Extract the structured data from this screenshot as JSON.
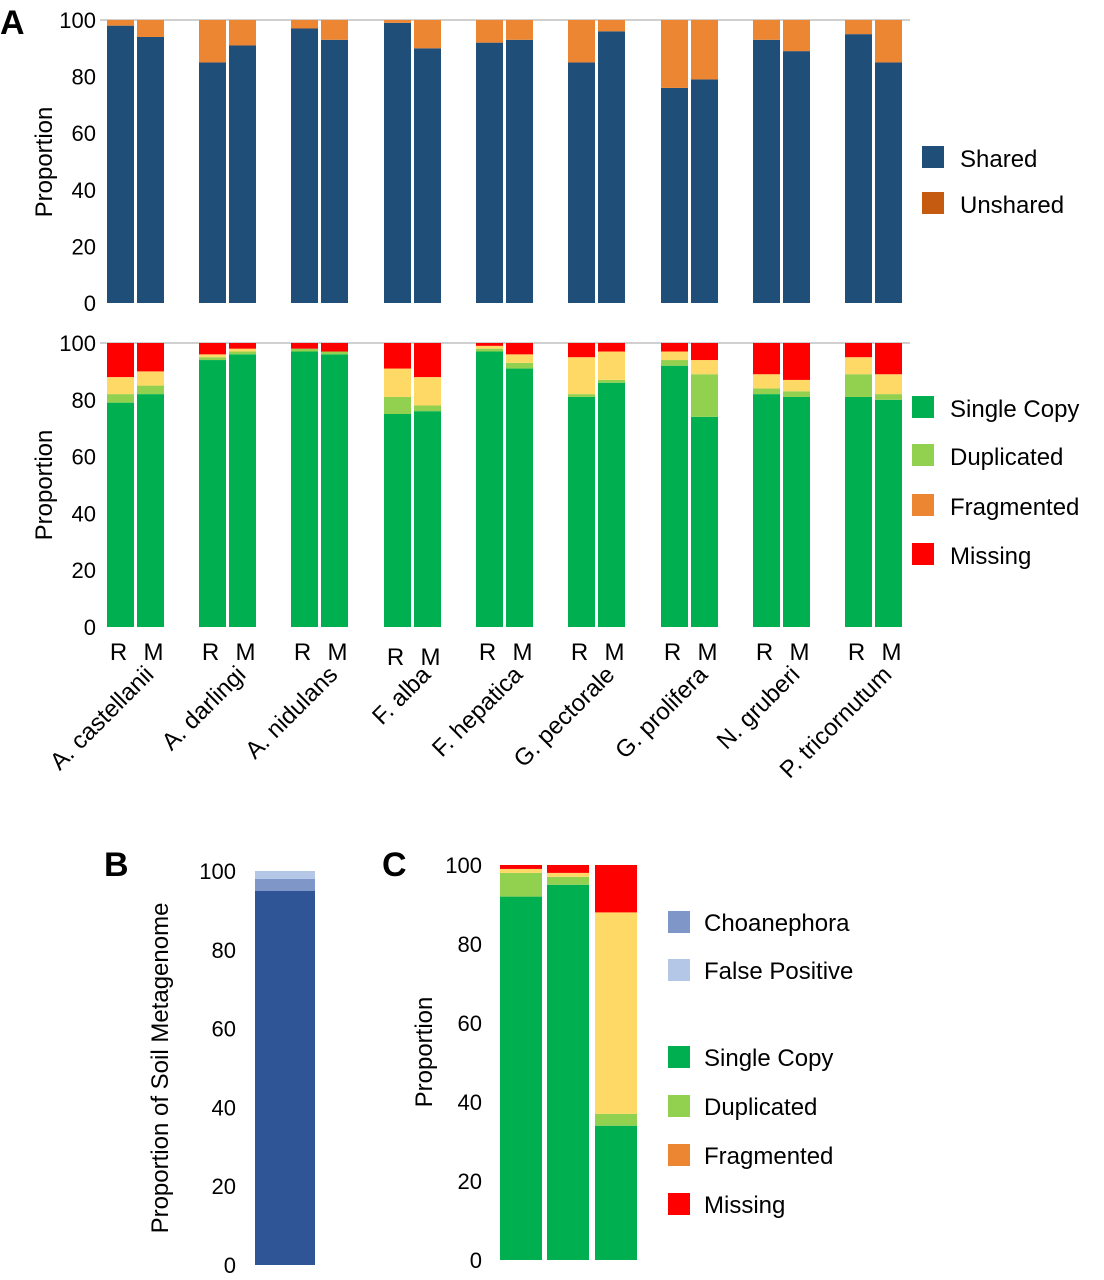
{
  "colors": {
    "shared": "#1f4e79",
    "unshared": "#ed8632",
    "unshared_legend": "#c55a11",
    "single": "#00b050",
    "duplicated": "#92d050",
    "fragmented_a": "#ffd966",
    "fragmented_legend": "#ed8632",
    "missing": "#ff0000",
    "soil": "#2f5597",
    "choanephora": "#7f96c8",
    "false_positive": "#b4c7e7",
    "grid": "#d0d0d0"
  },
  "panels": {
    "a": "A",
    "b": "B",
    "c": "C"
  },
  "chart_data": [
    {
      "id": "A-top",
      "type": "bar",
      "stacked": true,
      "ylabel": "Proportion",
      "ylim": [
        0,
        100
      ],
      "yticks": [
        "0",
        "20",
        "40",
        "60",
        "80",
        "100"
      ],
      "categories": [
        "A. castellanii",
        "A. darlingi",
        "A. nidulans",
        "F. alba",
        "F. hepatica",
        "G. pectorale",
        "G. prolifera",
        "N. gruberi",
        "P. tricornutum"
      ],
      "subcategories": [
        "R",
        "M"
      ],
      "legend": [
        "Shared",
        "Unshared"
      ],
      "series": [
        {
          "name": "Shared",
          "values": [
            [
              98,
              94
            ],
            [
              85,
              91
            ],
            [
              97,
              93
            ],
            [
              99,
              90
            ],
            [
              92,
              93
            ],
            [
              85,
              96
            ],
            [
              76,
              79
            ],
            [
              93,
              89
            ],
            [
              95,
              85
            ]
          ]
        },
        {
          "name": "Unshared",
          "values": [
            [
              2,
              6
            ],
            [
              15,
              9
            ],
            [
              3,
              7
            ],
            [
              1,
              10
            ],
            [
              8,
              7
            ],
            [
              15,
              4
            ],
            [
              24,
              21
            ],
            [
              7,
              11
            ],
            [
              5,
              15
            ]
          ]
        }
      ]
    },
    {
      "id": "A-bottom",
      "type": "bar",
      "stacked": true,
      "ylabel": "Proportion",
      "ylim": [
        0,
        100
      ],
      "yticks": [
        "0",
        "20",
        "40",
        "60",
        "80",
        "100"
      ],
      "categories": [
        "A. castellanii",
        "A. darlingi",
        "A. nidulans",
        "F. alba",
        "F. hepatica",
        "G. pectorale",
        "G. prolifera",
        "N. gruberi",
        "P. tricornutum"
      ],
      "subcategories": [
        "R",
        "M"
      ],
      "legend": [
        "Single Copy",
        "Duplicated",
        "Fragmented",
        "Missing"
      ],
      "series": [
        {
          "name": "Single Copy",
          "values": [
            [
              79,
              82
            ],
            [
              94,
              96
            ],
            [
              97,
              96
            ],
            [
              75,
              76
            ],
            [
              97,
              91
            ],
            [
              81,
              86
            ],
            [
              92,
              74
            ],
            [
              82,
              81
            ],
            [
              81,
              80
            ]
          ]
        },
        {
          "name": "Duplicated",
          "values": [
            [
              3,
              3
            ],
            [
              1,
              1
            ],
            [
              1,
              1
            ],
            [
              6,
              2
            ],
            [
              1,
              2
            ],
            [
              1,
              1
            ],
            [
              2,
              15
            ],
            [
              2,
              2
            ],
            [
              8,
              2
            ]
          ]
        },
        {
          "name": "Fragmented",
          "values": [
            [
              6,
              5
            ],
            [
              1,
              1
            ],
            [
              0,
              0
            ],
            [
              10,
              10
            ],
            [
              1,
              3
            ],
            [
              13,
              10
            ],
            [
              3,
              5
            ],
            [
              5,
              4
            ],
            [
              6,
              7
            ]
          ]
        },
        {
          "name": "Missing",
          "values": [
            [
              12,
              10
            ],
            [
              4,
              2
            ],
            [
              2,
              3
            ],
            [
              9,
              12
            ],
            [
              1,
              4
            ],
            [
              5,
              3
            ],
            [
              3,
              6
            ],
            [
              11,
              13
            ],
            [
              5,
              11
            ]
          ]
        }
      ]
    },
    {
      "id": "B",
      "type": "bar",
      "stacked": true,
      "ylabel": "Proportion of Soil Metagenome",
      "ylim": [
        0,
        100
      ],
      "yticks": [
        "0",
        "20",
        "40",
        "60",
        "80",
        "100"
      ],
      "series": [
        {
          "name": "Soil",
          "values": [
            95
          ]
        },
        {
          "name": "Choanephora",
          "values": [
            3
          ]
        },
        {
          "name": "False Positive",
          "values": [
            2
          ]
        }
      ]
    },
    {
      "id": "C",
      "type": "bar",
      "stacked": true,
      "ylabel": "Proportion",
      "ylim": [
        0,
        100
      ],
      "yticks": [
        "0",
        "20",
        "40",
        "60",
        "80",
        "100"
      ],
      "legend": [
        "Choanephora",
        "False Positive",
        "Single Copy",
        "Duplicated",
        "Fragmented",
        "Missing"
      ],
      "series": [
        {
          "name": "Single Copy",
          "values": [
            92,
            95,
            34
          ]
        },
        {
          "name": "Duplicated",
          "values": [
            6,
            2,
            3
          ]
        },
        {
          "name": "Fragmented",
          "values": [
            1,
            1,
            51
          ]
        },
        {
          "name": "Missing",
          "values": [
            1,
            2,
            12
          ]
        }
      ]
    }
  ]
}
